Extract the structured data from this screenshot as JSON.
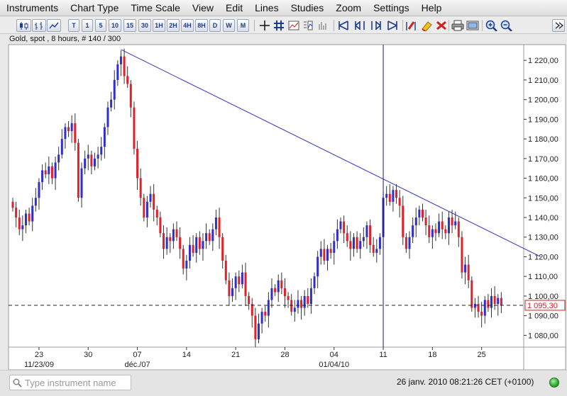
{
  "menu": [
    "Instruments",
    "Chart Type",
    "Time Scale",
    "View",
    "Edit",
    "Lines",
    "Studies",
    "Zoom",
    "Settings",
    "Help"
  ],
  "toolbar": {
    "timescales": [
      "T",
      "1",
      "5",
      "10",
      "15",
      "30",
      "1H",
      "2H",
      "4H",
      "8H",
      "D",
      "W",
      "M"
    ],
    "icons": [
      "candlestick-chart-icon",
      "bar-chart-icon",
      "line-chart-icon",
      "crosshair-icon",
      "grid-icon",
      "study-icon",
      "study-disabled-icon",
      "scroll-left-icon",
      "scroll-left-slow-icon",
      "scroll-right-slow-icon",
      "scroll-right-icon",
      "magnet-icon",
      "eraser-icon",
      "delete-lines-icon",
      "print-icon",
      "save-image-icon",
      "zoom-in-icon",
      "zoom-out-icon",
      "expand-icon"
    ]
  },
  "chart_title": "Gold, spot , 8 hours, # 140 / 300",
  "chart_data": {
    "type": "candlestick",
    "instrument": "Gold, spot",
    "interval": "8 hours",
    "ylim": [
      1074,
      1228
    ],
    "y_ticks": [
      1080,
      1090,
      1100,
      1110,
      1120,
      1130,
      1140,
      1150,
      1160,
      1170,
      1180,
      1190,
      1200,
      1210,
      1220
    ],
    "y_tick_labels": [
      "1 080,00",
      "1 090,00",
      "1 100,00",
      "1 110,00",
      "1 120,00",
      "1 130,00",
      "1 140,00",
      "1 150,00",
      "1 160,00",
      "1 170,00",
      "1 180,00",
      "1 190,00",
      "1 200,00",
      "1 210,00",
      "1 220,00"
    ],
    "x_ticks": [
      {
        "index": 8,
        "label": "23",
        "sublabel": "11/23/09"
      },
      {
        "index": 23,
        "label": "30"
      },
      {
        "index": 38,
        "label": "07",
        "sublabel": "déc./07"
      },
      {
        "index": 53,
        "label": "14"
      },
      {
        "index": 68,
        "label": "21"
      },
      {
        "index": 83,
        "label": "28"
      },
      {
        "index": 98,
        "label": "04",
        "sublabel": "01/04/10"
      },
      {
        "index": 113,
        "label": "11"
      },
      {
        "index": 128,
        "label": "18"
      },
      {
        "index": 143,
        "label": "25"
      }
    ],
    "up_color": "#2f2fd0",
    "down_color": "#e0202a",
    "line_color": "#3030c8",
    "last_price": 1095.3,
    "last_price_label": "1 095,30",
    "cursor_index": 113,
    "trendline": {
      "from_index": 33,
      "from_price": 1225.5,
      "to_index": 161,
      "to_price": 1120
    },
    "closes": [
      1145,
      1140,
      1134,
      1136,
      1142,
      1138,
      1146,
      1150,
      1158,
      1164,
      1162,
      1166,
      1160,
      1168,
      1172,
      1180,
      1186,
      1184,
      1188,
      1178,
      1150,
      1165,
      1170,
      1172,
      1166,
      1170,
      1172,
      1176,
      1186,
      1196,
      1200,
      1210,
      1218,
      1222,
      1212,
      1208,
      1196,
      1175,
      1160,
      1150,
      1140,
      1148,
      1152,
      1144,
      1140,
      1132,
      1124,
      1130,
      1128,
      1134,
      1130,
      1124,
      1114,
      1118,
      1126,
      1122,
      1130,
      1124,
      1128,
      1132,
      1128,
      1134,
      1140,
      1130,
      1118,
      1108,
      1100,
      1104,
      1110,
      1106,
      1112,
      1100,
      1096,
      1090,
      1078,
      1086,
      1092,
      1090,
      1098,
      1104,
      1102,
      1108,
      1104,
      1100,
      1098,
      1092,
      1094,
      1098,
      1094,
      1100,
      1096,
      1104,
      1110,
      1120,
      1124,
      1118,
      1124,
      1122,
      1128,
      1134,
      1138,
      1132,
      1128,
      1124,
      1130,
      1124,
      1128,
      1130,
      1136,
      1126,
      1122,
      1124,
      1130,
      1150,
      1152,
      1148,
      1154,
      1150,
      1146,
      1130,
      1124,
      1130,
      1136,
      1140,
      1144,
      1140,
      1136,
      1130,
      1134,
      1132,
      1138,
      1134,
      1132,
      1140,
      1136,
      1138,
      1130,
      1112,
      1116,
      1108,
      1094,
      1096,
      1092,
      1090,
      1098,
      1094,
      1100,
      1096,
      1099,
      1095.3
    ]
  },
  "status": {
    "search_placeholder": "Type instrument name",
    "clock": "26 janv. 2010 08:21:26  CET (+0100)",
    "connection_color": "#2fbf2f"
  }
}
